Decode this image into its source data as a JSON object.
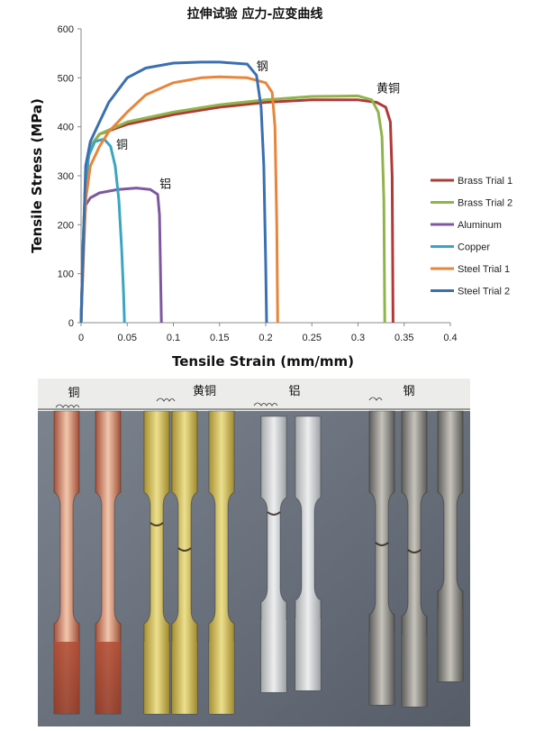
{
  "chart_data": {
    "type": "line",
    "title": "拉伸试验 应力-应变曲线",
    "xlabel": "Tensile Strain (mm/mm)",
    "ylabel": "Tensile Stress (MPa)",
    "xlim": [
      0,
      0.4
    ],
    "ylim": [
      0,
      600
    ],
    "xticks": [
      "0",
      "0.05",
      "0.1",
      "0.15",
      "0.2",
      "0.25",
      "0.3",
      "0.35",
      "0.4"
    ],
    "yticks": [
      "0",
      "100",
      "200",
      "300",
      "400",
      "500",
      "600"
    ],
    "grid": false,
    "legend_position": "right",
    "series": [
      {
        "name": "Brass Trial 1",
        "color": "#b03a38",
        "x": [
          0,
          0.002,
          0.005,
          0.01,
          0.02,
          0.05,
          0.1,
          0.15,
          0.2,
          0.25,
          0.3,
          0.32,
          0.33,
          0.335,
          0.337,
          0.338
        ],
        "y": [
          0,
          150,
          300,
          360,
          385,
          405,
          425,
          440,
          450,
          455,
          455,
          450,
          440,
          410,
          300,
          0
        ]
      },
      {
        "name": "Brass Trial 2",
        "color": "#8fb44a",
        "x": [
          0,
          0.002,
          0.005,
          0.01,
          0.02,
          0.05,
          0.1,
          0.15,
          0.2,
          0.25,
          0.3,
          0.315,
          0.322,
          0.326,
          0.328,
          0.329
        ],
        "y": [
          0,
          150,
          300,
          360,
          385,
          410,
          430,
          445,
          455,
          462,
          463,
          455,
          430,
          380,
          250,
          0
        ]
      },
      {
        "name": "Aluminum",
        "color": "#7d58a0",
        "x": [
          0,
          0.002,
          0.005,
          0.01,
          0.02,
          0.04,
          0.06,
          0.075,
          0.083,
          0.085,
          0.087
        ],
        "y": [
          0,
          150,
          240,
          255,
          265,
          272,
          275,
          272,
          262,
          220,
          0
        ]
      },
      {
        "name": "Copper",
        "color": "#3aa5c2",
        "x": [
          0,
          0.003,
          0.008,
          0.015,
          0.025,
          0.032,
          0.037,
          0.041,
          0.044,
          0.046,
          0.047
        ],
        "y": [
          0,
          200,
          340,
          370,
          375,
          360,
          320,
          250,
          150,
          60,
          0
        ]
      },
      {
        "name": "Steel Trial 1",
        "color": "#e8853a",
        "x": [
          0,
          0.005,
          0.01,
          0.02,
          0.03,
          0.05,
          0.07,
          0.1,
          0.13,
          0.15,
          0.18,
          0.2,
          0.207,
          0.21,
          0.212,
          0.213
        ],
        "y": [
          0,
          250,
          320,
          360,
          390,
          430,
          465,
          490,
          500,
          502,
          500,
          490,
          470,
          400,
          200,
          0
        ]
      },
      {
        "name": "Steel Trial 2",
        "color": "#3a6fb0",
        "x": [
          0,
          0.005,
          0.01,
          0.02,
          0.03,
          0.05,
          0.07,
          0.1,
          0.13,
          0.15,
          0.18,
          0.19,
          0.195,
          0.198,
          0.2,
          0.201
        ],
        "y": [
          0,
          320,
          370,
          410,
          450,
          500,
          520,
          530,
          532,
          532,
          528,
          505,
          440,
          320,
          120,
          0
        ]
      }
    ],
    "annotations": [
      {
        "text": "钢",
        "x": 0.19,
        "y": 515
      },
      {
        "text": "黄铜",
        "x": 0.32,
        "y": 470
      },
      {
        "text": "铜",
        "x": 0.038,
        "y": 355
      },
      {
        "text": "铝",
        "x": 0.085,
        "y": 275
      }
    ]
  },
  "photo": {
    "labels": [
      {
        "text": "铜",
        "handwritten": "Copper"
      },
      {
        "text": "黄铜",
        "handwritten": "Brass"
      },
      {
        "text": "铝",
        "handwritten": "Aluminum"
      },
      {
        "text": "钢",
        "handwritten": "Steel"
      }
    ]
  }
}
